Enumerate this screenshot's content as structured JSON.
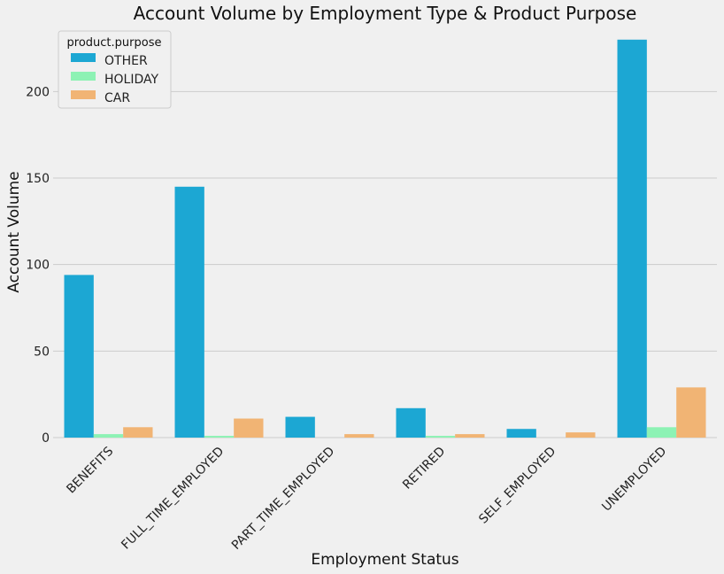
{
  "chart_data": {
    "type": "bar",
    "title": "Account Volume by Employment Type & Product Purpose",
    "xlabel": "Employment Status",
    "ylabel": "Account Volume",
    "ylim": [
      0,
      235
    ],
    "yticks": [
      0,
      50,
      100,
      150,
      200
    ],
    "grid": "horizontal",
    "legend": {
      "title": "product.purpose",
      "placement": "top-left"
    },
    "categories": [
      "BENEFITS",
      "FULL_TIME_EMPLOYED",
      "PART_TIME_EMPLOYED",
      "RETIRED",
      "SELF_EMPLOYED",
      "UNEMPLOYED"
    ],
    "series": [
      {
        "name": "OTHER",
        "color": "#1ca7d3",
        "values": [
          94,
          145,
          12,
          17,
          5,
          230
        ]
      },
      {
        "name": "HOLIDAY",
        "color": "#8df2b4",
        "values": [
          2,
          1,
          0,
          1,
          0,
          6
        ]
      },
      {
        "name": "CAR",
        "color": "#f1b474",
        "values": [
          6,
          11,
          2,
          2,
          3,
          29
        ]
      }
    ]
  }
}
